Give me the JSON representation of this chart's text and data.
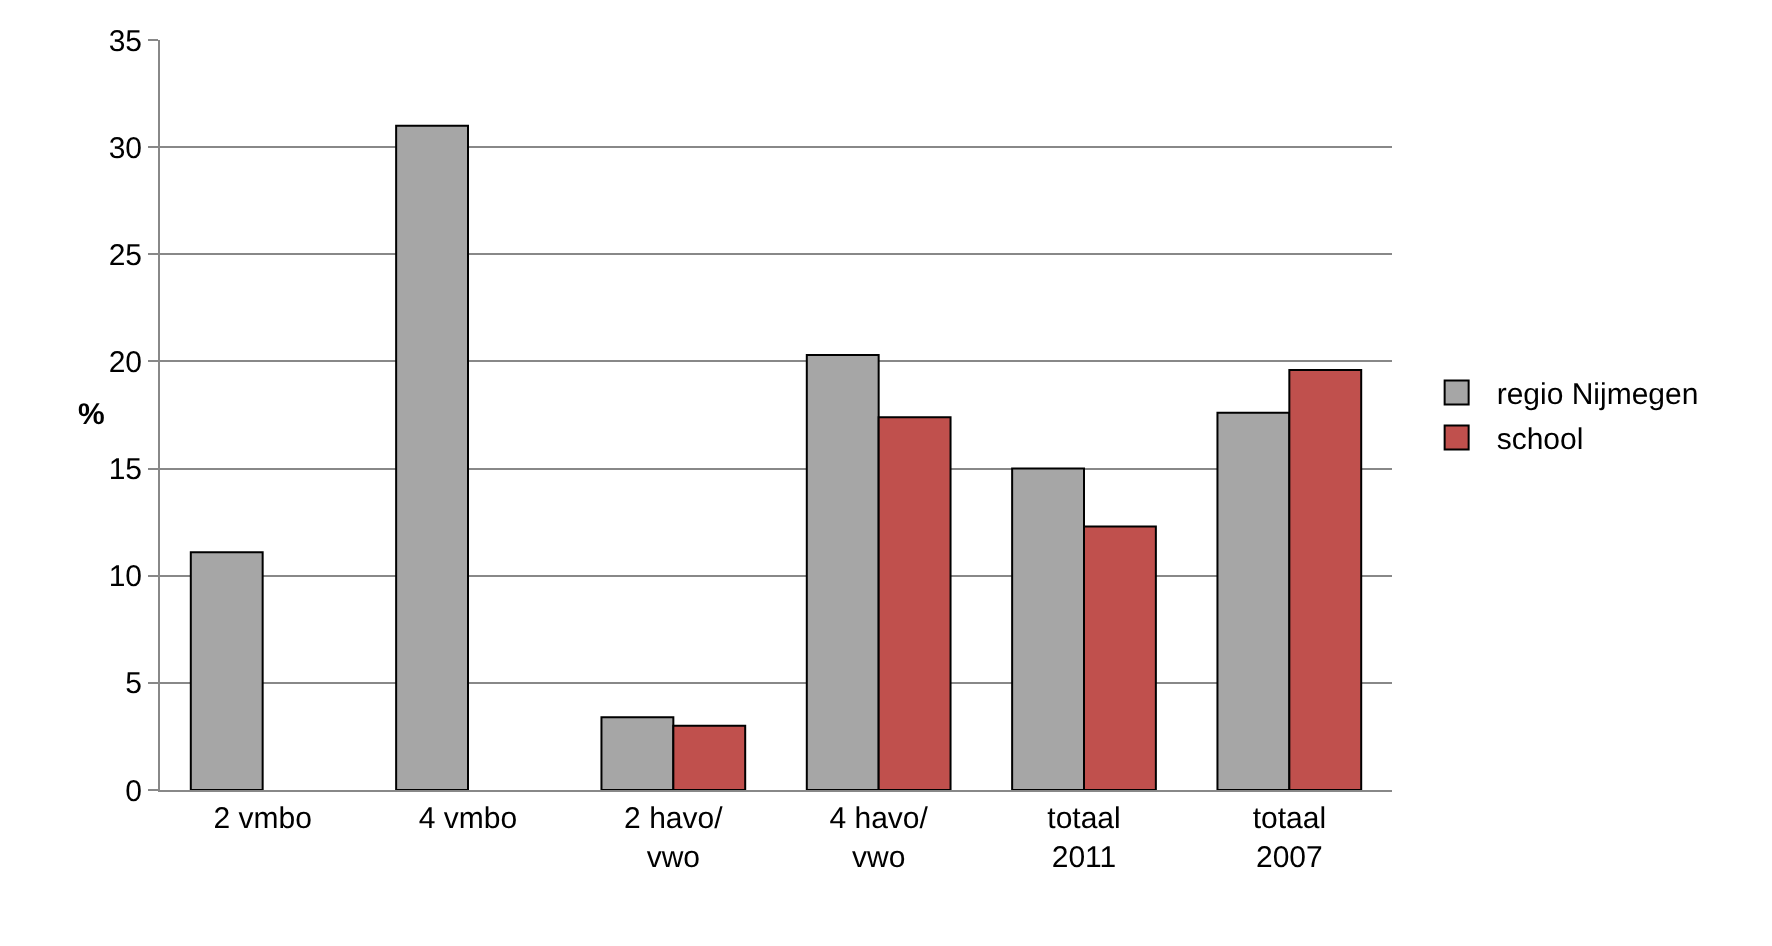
{
  "chart_data": {
    "type": "bar",
    "ylabel": "%",
    "categories": [
      "2 vmbo",
      "4 vmbo",
      "2 havo/\nvwo",
      "4 havo/\nvwo",
      "totaal\n2011",
      "totaal\n2007"
    ],
    "series": [
      {
        "name": "regio Nijmegen",
        "color": "#a6a6a6",
        "values": [
          11.1,
          31,
          3.4,
          20.3,
          15,
          17.6
        ]
      },
      {
        "name": "school",
        "color": "#c0504d",
        "values": [
          null,
          null,
          3.0,
          17.4,
          12.3,
          19.6
        ]
      }
    ],
    "ylim": [
      0,
      35
    ],
    "yticks": [
      0,
      5,
      10,
      15,
      20,
      25,
      30,
      35
    ],
    "grid": "y",
    "legend": "right"
  }
}
